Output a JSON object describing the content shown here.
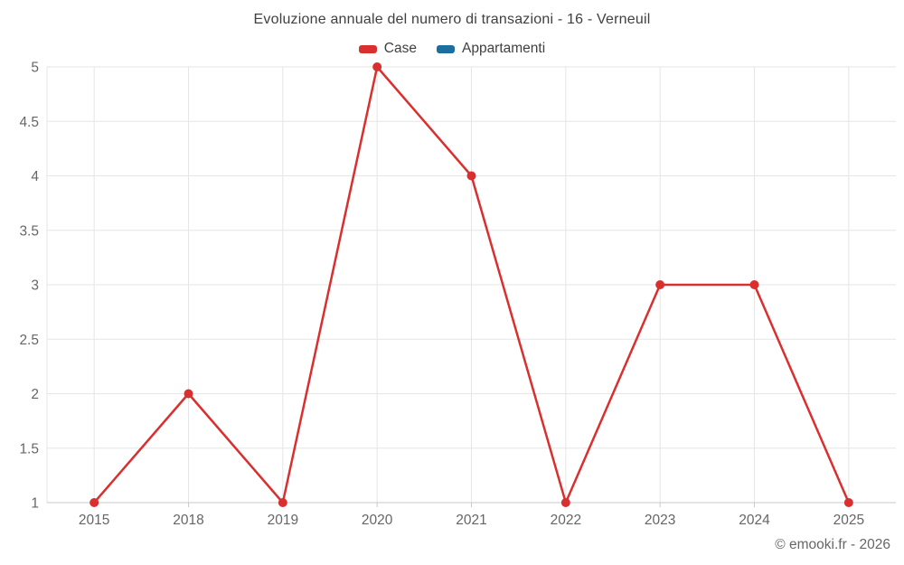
{
  "chart_data": {
    "type": "line",
    "title": "Evoluzione annuale del numero di transazioni - 16 - Verneuil",
    "categories": [
      "2015",
      "2018",
      "2019",
      "2020",
      "2021",
      "2022",
      "2023",
      "2024",
      "2025"
    ],
    "series": [
      {
        "name": "Case",
        "color": "#d9302f",
        "values": [
          1,
          2,
          1,
          5,
          4,
          1,
          3,
          3,
          1
        ]
      },
      {
        "name": "Appartamenti",
        "color": "#1c6e9f",
        "values": []
      }
    ],
    "ylim": [
      1,
      5
    ],
    "ytick_step": 0.5,
    "grid": true,
    "legend_position": "top",
    "xlabel": "",
    "ylabel": ""
  },
  "credit": "© emooki.fr - 2026",
  "colors": {
    "gridline": "#e6e6e6",
    "axis_line": "#c9c9c9",
    "tick_label": "#666666",
    "title_text": "#404040"
  }
}
